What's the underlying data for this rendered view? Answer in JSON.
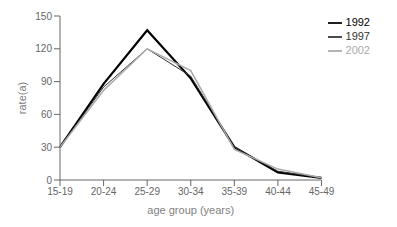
{
  "chart_data": {
    "type": "line",
    "categories": [
      "15-19",
      "20-24",
      "25-29",
      "30-34",
      "35-39",
      "40-44",
      "45-49"
    ],
    "series": [
      {
        "name": "1992",
        "color": "#000000",
        "values": [
          30,
          88,
          137,
          93,
          30,
          7,
          2
        ]
      },
      {
        "name": "1997",
        "color": "#333333",
        "values": [
          30,
          85,
          120,
          95,
          30,
          8,
          2
        ]
      },
      {
        "name": "2002",
        "color": "#aaaaaa",
        "values": [
          30,
          82,
          120,
          100,
          28,
          10,
          2
        ]
      }
    ],
    "xlabel": "age group (years)",
    "ylabel": "rate(a)",
    "ylim": [
      0,
      150
    ],
    "yticks": [
      0,
      30,
      60,
      90,
      120,
      150
    ],
    "legend": "upper right",
    "grid": false
  }
}
